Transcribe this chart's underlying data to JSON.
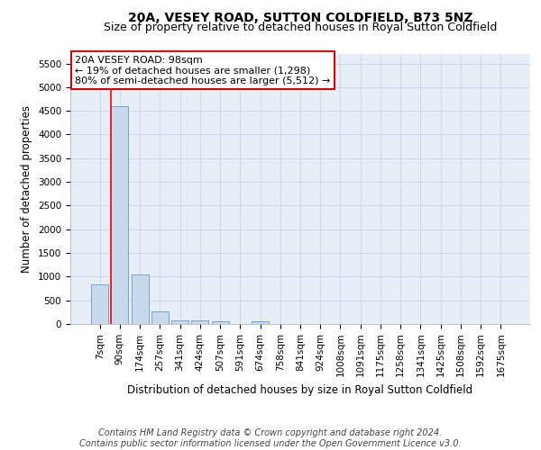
{
  "title": "20A, VESEY ROAD, SUTTON COLDFIELD, B73 5NZ",
  "subtitle": "Size of property relative to detached houses in Royal Sutton Coldfield",
  "xlabel": "Distribution of detached houses by size in Royal Sutton Coldfield",
  "ylabel": "Number of detached properties",
  "bin_labels": [
    "7sqm",
    "90sqm",
    "174sqm",
    "257sqm",
    "341sqm",
    "424sqm",
    "507sqm",
    "591sqm",
    "674sqm",
    "758sqm",
    "841sqm",
    "924sqm",
    "1008sqm",
    "1091sqm",
    "1175sqm",
    "1258sqm",
    "1341sqm",
    "1425sqm",
    "1508sqm",
    "1592sqm",
    "1675sqm"
  ],
  "bar_heights": [
    840,
    4590,
    1050,
    270,
    80,
    70,
    55,
    0,
    55,
    0,
    0,
    0,
    0,
    0,
    0,
    0,
    0,
    0,
    0,
    0,
    0
  ],
  "bar_color": "#c8d9ee",
  "bar_edge_color": "#6699cc",
  "red_line_bar_index": 1,
  "ylim_max": 5700,
  "yticks": [
    0,
    500,
    1000,
    1500,
    2000,
    2500,
    3000,
    3500,
    4000,
    4500,
    5000,
    5500
  ],
  "annotation_line1": "20A VESEY ROAD: 98sqm",
  "annotation_line2": "← 19% of detached houses are smaller (1,298)",
  "annotation_line3": "80% of semi-detached houses are larger (5,512) →",
  "annotation_box_facecolor": "#ffffff",
  "annotation_box_edgecolor": "#cc0000",
  "footer_line1": "Contains HM Land Registry data © Crown copyright and database right 2024.",
  "footer_line2": "Contains public sector information licensed under the Open Government Licence v3.0.",
  "background_color": "#ffffff",
  "plot_bg_color": "#e8eef8",
  "grid_color": "#c8d4e8",
  "title_fontsize": 10,
  "subtitle_fontsize": 9,
  "ylabel_fontsize": 8.5,
  "xlabel_fontsize": 8.5,
  "tick_fontsize": 7.5,
  "annotation_fontsize": 8,
  "footer_fontsize": 7
}
